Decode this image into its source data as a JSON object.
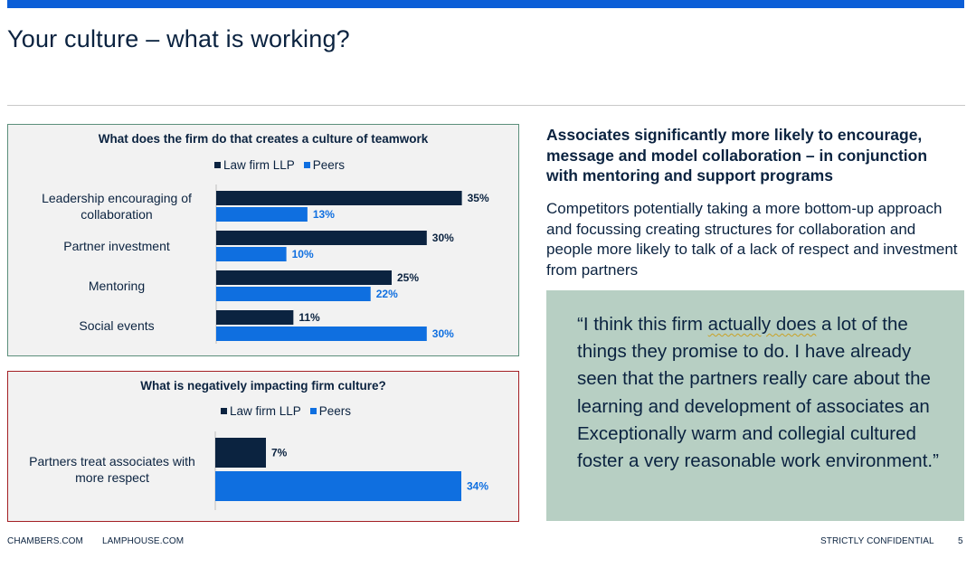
{
  "page": {
    "title": "Your culture – what is working?",
    "colors": {
      "accent": "#0b5ed7",
      "navy": "#0b2340",
      "peers": "#0f6fe0",
      "quote_bg": "#b7cfc3",
      "panel_bg": "#f2f2f2",
      "green_border": "#5b8f7b",
      "red_border": "#a31f24"
    }
  },
  "chart_data": [
    {
      "type": "bar",
      "orientation": "horizontal",
      "title": "What does the firm do that creates a culture of teamwork",
      "categories": [
        "Leadership encouraging of collaboration",
        "Partner investment",
        "Mentoring",
        "Social events"
      ],
      "series": [
        {
          "name": "Law firm LLP",
          "color": "#0b2340",
          "values": [
            35,
            30,
            25,
            11
          ],
          "labels": [
            "35%",
            "30%",
            "25%",
            "11%"
          ]
        },
        {
          "name": "Peers",
          "color": "#0f6fe0",
          "values": [
            13,
            10,
            22,
            30
          ],
          "labels": [
            "13%",
            "10%",
            "22%",
            "30%"
          ]
        }
      ],
      "legend": "top",
      "grid": false,
      "xlim": [
        0,
        40
      ]
    },
    {
      "type": "bar",
      "orientation": "horizontal",
      "title": "What is negatively impacting firm culture?",
      "categories": [
        "Partners treat associates with more respect"
      ],
      "series": [
        {
          "name": "Law firm LLP",
          "color": "#0b2340",
          "values": [
            7
          ],
          "labels": [
            "7%"
          ]
        },
        {
          "name": "Peers",
          "color": "#0f6fe0",
          "values": [
            34
          ],
          "labels": [
            "34%"
          ]
        }
      ],
      "legend": "top",
      "grid": false,
      "xlim": [
        0,
        40
      ]
    }
  ],
  "chart1_cat_lines": [
    [
      "Leadership encouraging of",
      "collaboration"
    ],
    [
      "Partner investment"
    ],
    [
      "Mentoring"
    ],
    [
      "Social events"
    ]
  ],
  "chart2_cat_lines": [
    [
      "Partners treat associates with",
      "more respect"
    ]
  ],
  "right": {
    "headline": "Associates significantly more likely to encourage, message and model collaboration – in conjunction with mentoring and support programs",
    "body": "Competitors potentially taking a more bottom-up approach and focussing creating structures for collaboration and people more likely to talk of a lack of respect and investment from partners",
    "quote_before": "“I think this firm ",
    "quote_highlight": "actually does",
    "quote_after": " a lot of the things they promise to do. I have already seen that the partners really care about the learning and development of associates an Exceptionally warm and collegial cultured foster a very reasonable work environment.”"
  },
  "footer": {
    "site1": "CHAMBERS.COM",
    "site2": "LAMPHOUSE.COM",
    "confidential": "STRICTLY CONFIDENTIAL",
    "page_number": "5"
  }
}
